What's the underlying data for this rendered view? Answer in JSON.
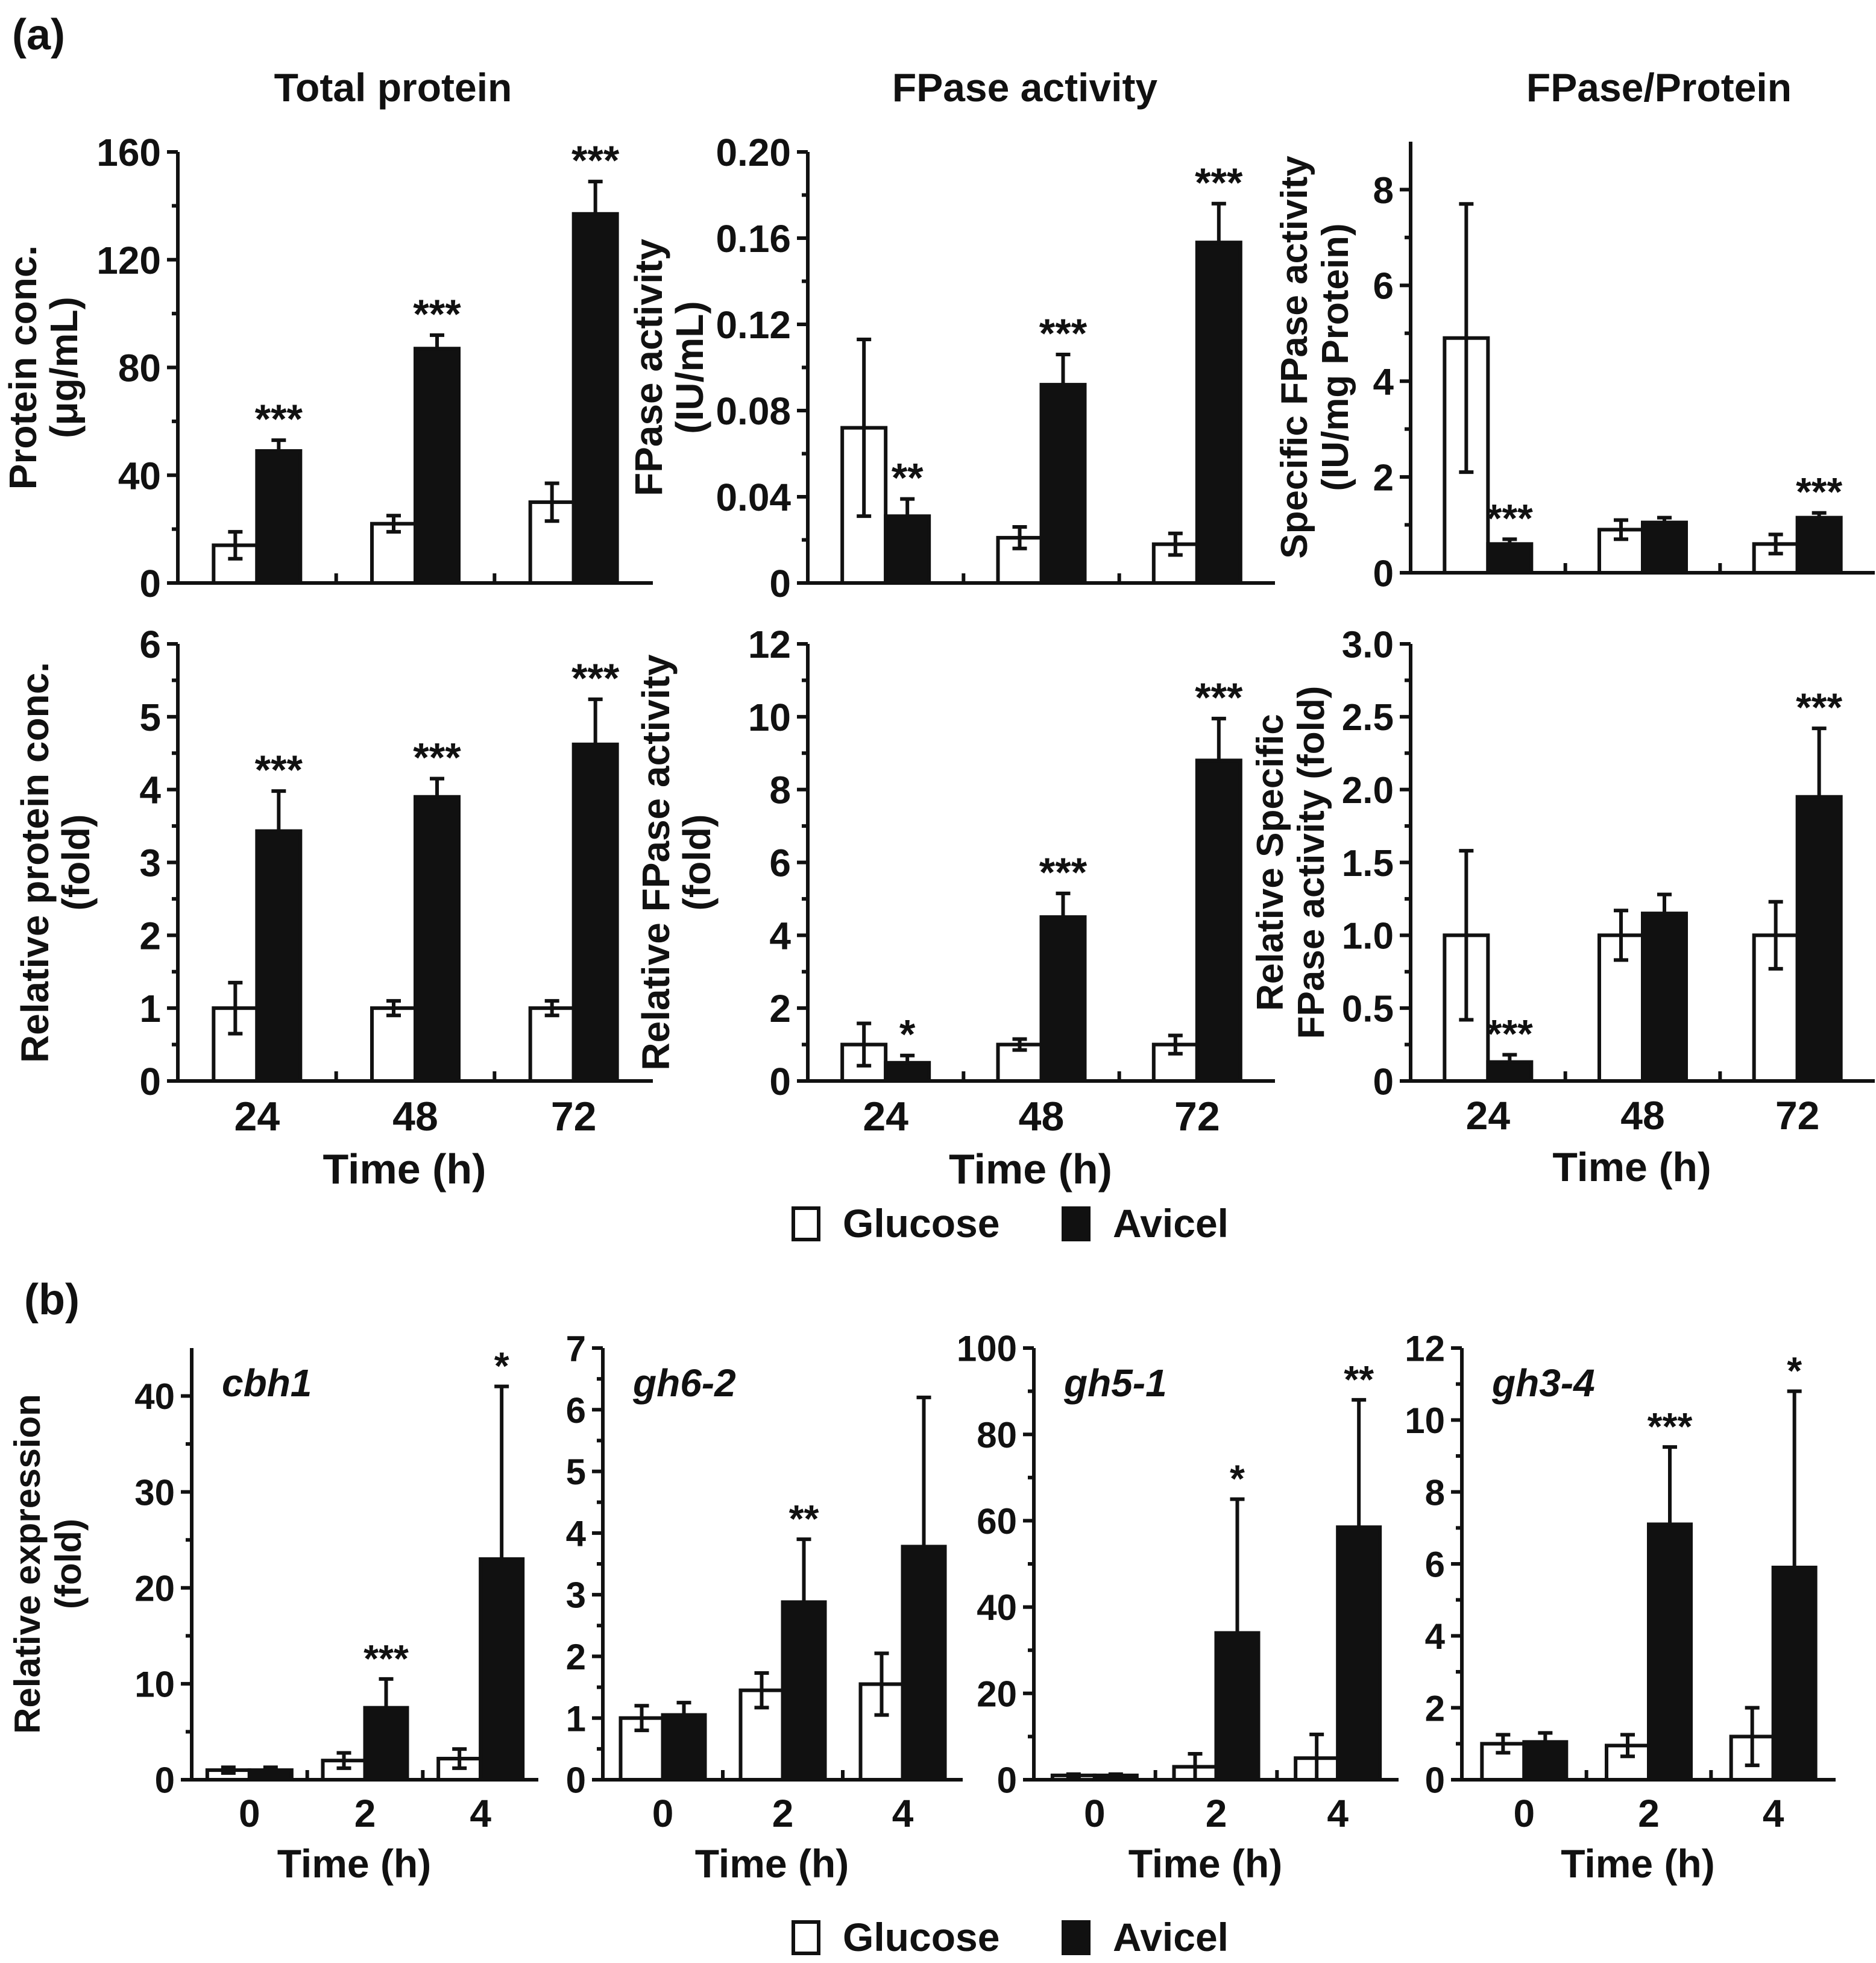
{
  "figure": {
    "panel_a_label": "(a)",
    "panel_b_label": "(b)",
    "legend_a": {
      "glucose_label": "Glucose",
      "avicel_label": "Avicel"
    },
    "legend_b": {
      "glucose_label": "Glucose",
      "avicel_label": "Avicel"
    },
    "col_titles": [
      "Total protein",
      "FPase activity",
      "FPase/Protein"
    ],
    "colors": {
      "glucose": "#ffffff",
      "avicel": "#111111",
      "axis": "#111111"
    }
  },
  "chart_data": [
    {
      "id": "a1",
      "type": "bar",
      "title": "",
      "categories": [
        "24",
        "48",
        "72"
      ],
      "series": [
        {
          "name": "Glucose",
          "values": [
            14,
            22,
            30
          ],
          "errors": [
            5,
            3,
            7
          ]
        },
        {
          "name": "Avicel",
          "values": [
            49,
            87,
            137
          ],
          "errors": [
            4,
            5,
            12
          ]
        }
      ],
      "significance": [
        "***",
        "***",
        "***"
      ],
      "ylabel": [
        "Protein conc.",
        "(μg/mL)"
      ],
      "xlabel": "",
      "ylim": [
        0,
        160
      ],
      "yticks": [
        "0",
        "40",
        "80",
        "120",
        "160"
      ],
      "show_xticklabels": false
    },
    {
      "id": "a2",
      "type": "bar",
      "title": "",
      "categories": [
        "24",
        "48",
        "72"
      ],
      "series": [
        {
          "name": "Glucose",
          "values": [
            0.072,
            0.021,
            0.018
          ],
          "errors": [
            0.041,
            0.005,
            0.005
          ]
        },
        {
          "name": "Avicel",
          "values": [
            0.031,
            0.092,
            0.158
          ],
          "errors": [
            0.008,
            0.014,
            0.018
          ]
        }
      ],
      "significance": [
        "**",
        "***",
        "***"
      ],
      "ylabel": [
        "FPase activity",
        "(IU/mL)"
      ],
      "xlabel": "",
      "ylim": [
        0,
        0.2
      ],
      "yticks": [
        "0",
        "0.04",
        "0.08",
        "0.12",
        "0.16",
        "0.20"
      ],
      "show_xticklabels": false
    },
    {
      "id": "a3",
      "type": "bar",
      "title": "",
      "categories": [
        "24",
        "48",
        "72"
      ],
      "series": [
        {
          "name": "Glucose",
          "values": [
            4.9,
            0.9,
            0.6
          ],
          "errors": [
            2.8,
            0.2,
            0.2
          ]
        },
        {
          "name": "Avicel",
          "values": [
            0.6,
            1.05,
            1.15
          ],
          "errors": [
            0.1,
            0.1,
            0.1
          ]
        }
      ],
      "significance": [
        "***",
        "",
        "***"
      ],
      "ylabel": [
        "Specific FPase activity",
        "(IU/mg Protein)"
      ],
      "xlabel": "",
      "ylim": [
        0,
        9
      ],
      "yticks": [
        "0",
        "2",
        "4",
        "6",
        "8"
      ],
      "show_xticklabels": false
    },
    {
      "id": "a4",
      "type": "bar",
      "title": "",
      "categories": [
        "24",
        "48",
        "72"
      ],
      "series": [
        {
          "name": "Glucose",
          "values": [
            1.0,
            1.0,
            1.0
          ],
          "errors": [
            0.35,
            0.1,
            0.1
          ]
        },
        {
          "name": "Avicel",
          "values": [
            3.43,
            3.9,
            4.62
          ],
          "errors": [
            0.55,
            0.25,
            0.62
          ]
        }
      ],
      "significance": [
        "***",
        "***",
        "***"
      ],
      "ylabel": [
        "Relative protein conc.",
        "(fold)"
      ],
      "xlabel": "Time (h)",
      "ylim": [
        0,
        6
      ],
      "yticks": [
        "0",
        "1",
        "2",
        "3",
        "4",
        "5",
        "6"
      ],
      "show_xticklabels": true
    },
    {
      "id": "a5",
      "type": "bar",
      "title": "",
      "categories": [
        "24",
        "48",
        "72"
      ],
      "series": [
        {
          "name": "Glucose",
          "values": [
            1.0,
            1.0,
            1.0
          ],
          "errors": [
            0.58,
            0.15,
            0.25
          ]
        },
        {
          "name": "Avicel",
          "values": [
            0.5,
            4.5,
            8.8
          ],
          "errors": [
            0.2,
            0.65,
            1.15
          ]
        }
      ],
      "significance": [
        "*",
        "***",
        "***"
      ],
      "ylabel": [
        "Relative FPase activity",
        "(fold)"
      ],
      "xlabel": "Time (h)",
      "ylim": [
        0,
        12
      ],
      "yticks": [
        "0",
        "2",
        "4",
        "6",
        "8",
        "10",
        "12"
      ],
      "show_xticklabels": true
    },
    {
      "id": "a6",
      "type": "bar",
      "title": "",
      "categories": [
        "24",
        "48",
        "72"
      ],
      "series": [
        {
          "name": "Glucose",
          "values": [
            1.0,
            1.0,
            1.0
          ],
          "errors": [
            0.58,
            0.17,
            0.23
          ]
        },
        {
          "name": "Avicel",
          "values": [
            0.13,
            1.15,
            1.95
          ],
          "errors": [
            0.05,
            0.13,
            0.47
          ]
        }
      ],
      "significance": [
        "***",
        "",
        "***"
      ],
      "ylabel": [
        "Relative Specific",
        "FPase activity (fold)"
      ],
      "xlabel": "Time (h)",
      "ylim": [
        0,
        3
      ],
      "yticks": [
        "0",
        "0.5",
        "1.0",
        "1.5",
        "2.0",
        "2.5",
        "3.0"
      ],
      "show_xticklabels": true
    },
    {
      "id": "b1",
      "type": "bar",
      "title": "cbh1",
      "categories": [
        "0",
        "2",
        "4"
      ],
      "series": [
        {
          "name": "Glucose",
          "values": [
            1.0,
            2.0,
            2.2
          ],
          "errors": [
            0.3,
            0.8,
            1.0
          ]
        },
        {
          "name": "Avicel",
          "values": [
            1.0,
            7.5,
            23.0
          ],
          "errors": [
            0.3,
            3.0,
            18.0
          ]
        }
      ],
      "significance": [
        "",
        "***",
        "*"
      ],
      "ylabel": [
        "Relative expression",
        "(fold)"
      ],
      "xlabel": "Time (h)",
      "ylim": [
        0,
        45
      ],
      "yticks": [
        "0",
        "10",
        "20",
        "30",
        "40"
      ],
      "show_xticklabels": true
    },
    {
      "id": "b2",
      "type": "bar",
      "title": "gh6-2",
      "categories": [
        "0",
        "2",
        "4"
      ],
      "series": [
        {
          "name": "Glucose",
          "values": [
            1.0,
            1.45,
            1.55
          ],
          "errors": [
            0.2,
            0.28,
            0.5
          ]
        },
        {
          "name": "Avicel",
          "values": [
            1.05,
            2.88,
            3.78
          ],
          "errors": [
            0.2,
            1.02,
            2.42
          ]
        }
      ],
      "significance": [
        "",
        "**",
        ""
      ],
      "ylabel": [],
      "xlabel": "Time (h)",
      "ylim": [
        0,
        7
      ],
      "yticks": [
        "0",
        "1",
        "2",
        "3",
        "4",
        "5",
        "6",
        "7"
      ],
      "show_xticklabels": true
    },
    {
      "id": "b3",
      "type": "bar",
      "title": "gh5-1",
      "categories": [
        "0",
        "2",
        "4"
      ],
      "series": [
        {
          "name": "Glucose",
          "values": [
            1.0,
            3.0,
            5.0
          ],
          "errors": [
            0.3,
            3.0,
            5.5
          ]
        },
        {
          "name": "Avicel",
          "values": [
            1.0,
            34.0,
            58.5
          ],
          "errors": [
            0.3,
            31.0,
            29.5
          ]
        }
      ],
      "significance": [
        "",
        "*",
        "**"
      ],
      "ylabel": [],
      "xlabel": "Time (h)",
      "ylim": [
        0,
        100
      ],
      "yticks": [
        "0",
        "20",
        "40",
        "60",
        "80",
        "100"
      ],
      "show_xticklabels": true
    },
    {
      "id": "b4",
      "type": "bar",
      "title": "gh3-4",
      "categories": [
        "0",
        "2",
        "4"
      ],
      "series": [
        {
          "name": "Glucose",
          "values": [
            1.0,
            0.95,
            1.2
          ],
          "errors": [
            0.25,
            0.3,
            0.8
          ]
        },
        {
          "name": "Avicel",
          "values": [
            1.05,
            7.1,
            5.9
          ],
          "errors": [
            0.25,
            2.15,
            4.9
          ]
        }
      ],
      "significance": [
        "",
        "***",
        "*"
      ],
      "ylabel": [],
      "xlabel": "Time (h)",
      "ylim": [
        0,
        12
      ],
      "yticks": [
        "0",
        "2",
        "4",
        "6",
        "8",
        "10",
        "12"
      ],
      "show_xticklabels": true
    }
  ]
}
